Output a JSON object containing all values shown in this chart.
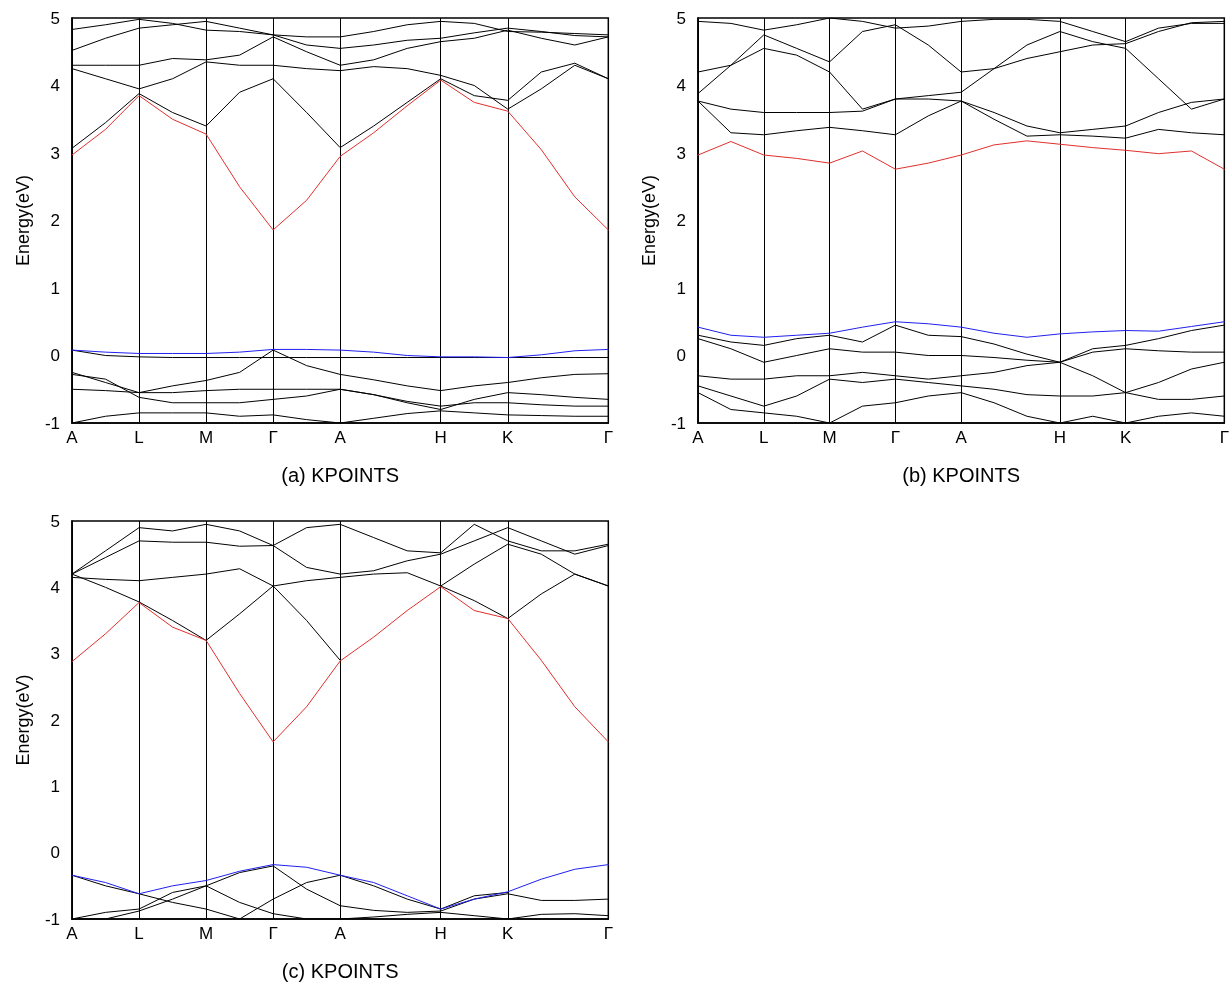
{
  "chart_data": [
    {
      "type": "line",
      "xlabel": "(a) KPOINTS",
      "ylabel": "Energy(eV)",
      "grid": "x",
      "marker": "none",
      "ylim": [
        -1,
        5
      ],
      "yticks": [
        -1,
        0,
        1,
        2,
        3,
        4,
        5
      ],
      "categories": [
        "A",
        null,
        "L",
        null,
        "M",
        null,
        "Γ",
        null,
        "A",
        null,
        null,
        "H",
        null,
        "K",
        null,
        null,
        "Γ"
      ],
      "series": [
        {
          "color": "#000000",
          "values": [
            3.07,
            3.45,
            3.88,
            3.6,
            3.4,
            3.9,
            4.1,
            3.6,
            3.08,
            3.4,
            3.75,
            4.1,
            3.85,
            3.78,
            4.2,
            4.33,
            4.1
          ]
        },
        {
          "color": "#000000",
          "values": [
            4.25,
            4.1,
            3.95,
            4.1,
            4.35,
            4.3,
            4.3,
            4.25,
            4.22,
            4.28,
            4.25,
            4.15,
            4.0,
            3.65,
            3.95,
            4.3,
            4.1
          ]
        },
        {
          "color": "#000000",
          "values": [
            4.3,
            4.3,
            4.3,
            4.4,
            4.38,
            4.45,
            4.72,
            4.5,
            4.3,
            4.38,
            4.55,
            4.65,
            4.7,
            4.82,
            4.7,
            4.6,
            4.72
          ]
        },
        {
          "color": "#000000",
          "values": [
            4.52,
            4.7,
            4.85,
            4.9,
            4.95,
            4.85,
            4.75,
            4.6,
            4.55,
            4.6,
            4.67,
            4.7,
            4.78,
            4.85,
            4.8,
            4.74,
            4.72
          ]
        },
        {
          "color": "#000000",
          "values": [
            4.83,
            4.9,
            4.98,
            4.92,
            4.82,
            4.8,
            4.75,
            4.72,
            4.72,
            4.8,
            4.9,
            4.95,
            4.92,
            4.8,
            4.79,
            4.77,
            4.75
          ]
        },
        {
          "color": "#000000",
          "values": [
            0.08,
            0.0,
            -0.02,
            -0.03,
            -0.03,
            -0.03,
            -0.03,
            -0.03,
            -0.03,
            -0.03,
            -0.03,
            -0.03,
            -0.03,
            -0.03,
            -0.03,
            -0.03,
            -0.03
          ]
        },
        {
          "color": "#000000",
          "values": [
            -0.25,
            -0.4,
            -0.55,
            -0.45,
            -0.37,
            -0.25,
            0.08,
            -0.15,
            -0.28,
            -0.36,
            -0.45,
            -0.52,
            -0.45,
            -0.4,
            -0.33,
            -0.28,
            -0.27
          ]
        },
        {
          "color": "#000000",
          "values": [
            -0.5,
            -0.52,
            -0.55,
            -0.55,
            -0.52,
            -0.5,
            -0.5,
            -0.5,
            -0.5,
            -0.58,
            -0.7,
            -0.8,
            -0.65,
            -0.55,
            -0.58,
            -0.62,
            -0.65
          ]
        },
        {
          "color": "#000000",
          "values": [
            -0.28,
            -0.35,
            -0.62,
            -0.7,
            -0.7,
            -0.7,
            -0.65,
            -0.6,
            -0.5,
            -0.58,
            -0.68,
            -0.75,
            -0.7,
            -0.7,
            -0.73,
            -0.75,
            -0.75
          ]
        },
        {
          "color": "#000000",
          "values": [
            -1,
            -0.9,
            -0.85,
            -0.85,
            -0.85,
            -0.9,
            -0.88,
            -0.95,
            -1,
            -0.93,
            -0.86,
            -0.82,
            -0.85,
            -0.88,
            -0.89,
            -0.9,
            -0.9
          ]
        },
        {
          "color": "#e0302c",
          "values": [
            2.97,
            3.35,
            3.85,
            3.5,
            3.28,
            2.5,
            1.86,
            2.3,
            2.95,
            3.3,
            3.7,
            4.08,
            3.75,
            3.62,
            3.05,
            2.35,
            1.86
          ]
        },
        {
          "color": "#2020f0",
          "values": [
            0.08,
            0.05,
            0.03,
            0.03,
            0.03,
            0.05,
            0.09,
            0.09,
            0.08,
            0.05,
            0.0,
            -0.02,
            -0.02,
            -0.03,
            0.01,
            0.07,
            0.09
          ]
        }
      ]
    },
    {
      "type": "line",
      "xlabel": "(b) KPOINTS",
      "ylabel": "Energy(eV)",
      "grid": "x",
      "marker": "none",
      "ylim": [
        -1,
        5
      ],
      "yticks": [
        -1,
        0,
        1,
        2,
        3,
        4,
        5
      ],
      "categories": [
        "A",
        null,
        "L",
        null,
        "M",
        null,
        "Γ",
        null,
        "A",
        null,
        null,
        "H",
        null,
        "K",
        null,
        null,
        "Γ"
      ],
      "series": [
        {
          "color": "#000000",
          "values": [
            3.77,
            3.3,
            3.27,
            3.33,
            3.38,
            3.33,
            3.27,
            3.55,
            3.77,
            3.5,
            3.25,
            3.27,
            3.25,
            3.22,
            3.35,
            3.3,
            3.27
          ]
        },
        {
          "color": "#000000",
          "values": [
            3.77,
            3.65,
            3.6,
            3.6,
            3.6,
            3.62,
            3.8,
            3.8,
            3.77,
            3.6,
            3.4,
            3.3,
            3.35,
            3.4,
            3.6,
            3.75,
            3.8
          ]
        },
        {
          "color": "#000000",
          "values": [
            3.88,
            4.3,
            4.55,
            4.45,
            4.2,
            3.65,
            3.8,
            3.85,
            3.9,
            4.25,
            4.6,
            4.8,
            4.65,
            4.55,
            4.1,
            3.65,
            3.8
          ]
        },
        {
          "color": "#000000",
          "values": [
            4.2,
            4.3,
            4.75,
            4.55,
            4.35,
            4.8,
            4.9,
            4.6,
            4.2,
            4.25,
            4.4,
            4.5,
            4.6,
            4.62,
            4.8,
            4.93,
            4.95
          ]
        },
        {
          "color": "#000000",
          "values": [
            4.95,
            4.92,
            4.82,
            4.9,
            5,
            4.95,
            4.85,
            4.88,
            4.95,
            4.98,
            4.98,
            4.95,
            4.8,
            4.65,
            4.85,
            4.92,
            4.92
          ]
        },
        {
          "color": "#000000",
          "values": [
            0.3,
            0.2,
            0.15,
            0.25,
            0.3,
            0.2,
            0.45,
            0.3,
            0.28,
            0.17,
            0.02,
            -0.1,
            0.1,
            0.15,
            0.25,
            0.37,
            0.45
          ]
        },
        {
          "color": "#000000",
          "values": [
            0.25,
            0.1,
            -0.1,
            0,
            0.1,
            0.05,
            0.05,
            0,
            0,
            -0.03,
            -0.07,
            -0.1,
            -0.3,
            -0.55,
            -0.4,
            -0.2,
            -0.1
          ]
        },
        {
          "color": "#000000",
          "values": [
            -0.3,
            -0.35,
            -0.35,
            -0.3,
            -0.3,
            -0.25,
            -0.3,
            -0.35,
            -0.3,
            -0.25,
            -0.15,
            -0.1,
            0.05,
            0.1,
            0.07,
            0.05,
            0.05
          ]
        },
        {
          "color": "#000000",
          "values": [
            -0.45,
            -0.6,
            -0.75,
            -0.6,
            -0.35,
            -0.4,
            -0.35,
            -0.4,
            -0.45,
            -0.5,
            -0.58,
            -0.6,
            -0.6,
            -0.55,
            -0.65,
            -0.65,
            -0.6
          ]
        },
        {
          "color": "#000000",
          "values": [
            -0.55,
            -0.8,
            -0.85,
            -0.9,
            -1,
            -0.75,
            -0.7,
            -0.6,
            -0.55,
            -0.7,
            -0.9,
            -1,
            -0.9,
            -1,
            -0.9,
            -0.85,
            -0.9
          ]
        },
        {
          "color": "#e0302c",
          "values": [
            2.97,
            3.17,
            2.97,
            2.92,
            2.85,
            3.03,
            2.76,
            2.85,
            2.97,
            3.12,
            3.18,
            3.13,
            3.08,
            3.04,
            2.99,
            3.03,
            2.76
          ]
        },
        {
          "color": "#2020f0",
          "values": [
            0.42,
            0.3,
            0.27,
            0.3,
            0.33,
            0.42,
            0.5,
            0.47,
            0.42,
            0.33,
            0.27,
            0.32,
            0.35,
            0.37,
            0.36,
            0.43,
            0.5
          ]
        }
      ]
    },
    {
      "type": "line",
      "xlabel": "(c) KPOINTS",
      "ylabel": "Energy(eV)",
      "grid": "x",
      "marker": "none",
      "ylim": [
        -1,
        5
      ],
      "yticks": [
        -1,
        0,
        1,
        2,
        3,
        4,
        5
      ],
      "categories": [
        "A",
        null,
        "L",
        null,
        "M",
        null,
        "Γ",
        null,
        "A",
        null,
        null,
        "H",
        null,
        "K",
        null,
        null,
        "Γ"
      ],
      "series": [
        {
          "color": "#000000",
          "values": [
            4.2,
            4.0,
            3.78,
            3.5,
            3.2,
            3.6,
            4.02,
            3.5,
            2.9,
            null,
            null,
            4.02,
            3.8,
            3.53,
            3.9,
            4.2,
            4.02
          ]
        },
        {
          "color": "#000000",
          "values": [
            4.15,
            4.12,
            4.1,
            4.15,
            4.2,
            4.28,
            4.02,
            4.1,
            4.15,
            4.2,
            4.22,
            4.02,
            4.35,
            4.65,
            4.5,
            4.2,
            4.02
          ]
        },
        {
          "color": "#000000",
          "values": [
            4.2,
            4.45,
            4.7,
            4.68,
            4.68,
            4.62,
            4.63,
            4.3,
            4.2,
            4.25,
            4.4,
            4.5,
            4.7,
            4.9,
            4.7,
            4.5,
            4.63
          ]
        },
        {
          "color": "#000000",
          "values": [
            4.2,
            4.55,
            4.9,
            4.85,
            4.95,
            4.85,
            4.63,
            4.9,
            4.95,
            4.75,
            4.55,
            4.52,
            4.95,
            4.7,
            4.55,
            4.55,
            4.65
          ]
        },
        {
          "color": "#000000",
          "values": [
            -0.34,
            -0.5,
            -0.62,
            -0.75,
            -0.85,
            -1,
            -0.7,
            -0.45,
            -0.34,
            -0.5,
            -0.7,
            -0.85,
            -0.65,
            -0.6,
            null,
            null,
            null
          ]
        },
        {
          "color": "#000000",
          "values": [
            -1,
            -0.9,
            -0.85,
            -0.6,
            -0.5,
            -0.3,
            -0.2,
            -0.55,
            -0.8,
            -0.87,
            -0.9,
            -0.88,
            -0.7,
            -0.62,
            -0.72,
            -0.72,
            -0.7
          ]
        },
        {
          "color": "#000000",
          "values": [
            -1,
            -1,
            -0.88,
            -0.7,
            -0.5,
            -0.75,
            -0.92,
            -1,
            -1,
            -0.97,
            -0.93,
            -0.9,
            -0.95,
            -1,
            -0.93,
            -0.92,
            -0.95
          ]
        },
        {
          "color": "#e0302c",
          "values": [
            2.88,
            3.3,
            3.77,
            3.4,
            3.2,
            2.4,
            1.67,
            2.2,
            2.89,
            3.25,
            3.65,
            4.01,
            3.65,
            3.53,
            2.9,
            2.2,
            1.67
          ]
        },
        {
          "color": "#2020f0",
          "values": [
            -0.34,
            -0.45,
            -0.62,
            -0.5,
            -0.42,
            -0.28,
            -0.18,
            -0.22,
            -0.34,
            -0.45,
            -0.65,
            -0.85,
            -0.7,
            -0.59,
            -0.4,
            -0.25,
            -0.18
          ]
        }
      ]
    }
  ]
}
